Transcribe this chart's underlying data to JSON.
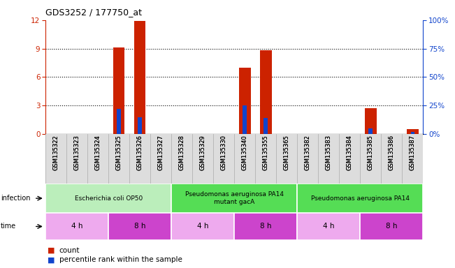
{
  "title": "GDS3252 / 177750_at",
  "samples": [
    "GSM135322",
    "GSM135323",
    "GSM135324",
    "GSM135325",
    "GSM135326",
    "GSM135327",
    "GSM135328",
    "GSM135329",
    "GSM135330",
    "GSM135340",
    "GSM135355",
    "GSM135365",
    "GSM135382",
    "GSM135383",
    "GSM135384",
    "GSM135385",
    "GSM135386",
    "GSM135387"
  ],
  "counts": [
    0,
    0,
    0,
    9.1,
    11.9,
    0,
    0,
    0,
    0,
    7.0,
    8.8,
    0,
    0,
    0,
    0,
    2.7,
    0,
    0.5
  ],
  "percentiles": [
    0,
    0,
    0,
    22,
    15,
    0,
    0,
    0,
    0,
    25,
    14,
    0,
    0,
    0,
    0,
    5,
    0,
    2
  ],
  "ylim_left": [
    0,
    12
  ],
  "ylim_right": [
    0,
    100
  ],
  "yticks_left": [
    0,
    3,
    6,
    9,
    12
  ],
  "yticks_right": [
    0,
    25,
    50,
    75,
    100
  ],
  "ytick_labels_right": [
    "0%",
    "25%",
    "50%",
    "75%",
    "100%"
  ],
  "bar_color_count": "#cc2200",
  "bar_color_pct": "#1144cc",
  "infection_groups": [
    {
      "label": "Escherichia coli OP50",
      "start": 0,
      "end": 6,
      "color": "#bbeebb"
    },
    {
      "label": "Pseudomonas aeruginosa PA14\nmutant gacA",
      "start": 6,
      "end": 12,
      "color": "#55dd55"
    },
    {
      "label": "Pseudomonas aeruginosa PA14",
      "start": 12,
      "end": 18,
      "color": "#55dd55"
    }
  ],
  "time_groups": [
    {
      "label": "4 h",
      "start": 0,
      "end": 3,
      "color": "#eeaaee"
    },
    {
      "label": "8 h",
      "start": 3,
      "end": 6,
      "color": "#cc44cc"
    },
    {
      "label": "4 h",
      "start": 6,
      "end": 9,
      "color": "#eeaaee"
    },
    {
      "label": "8 h",
      "start": 9,
      "end": 12,
      "color": "#cc44cc"
    },
    {
      "label": "4 h",
      "start": 12,
      "end": 15,
      "color": "#eeaaee"
    },
    {
      "label": "8 h",
      "start": 15,
      "end": 18,
      "color": "#cc44cc"
    }
  ],
  "legend_count_label": "count",
  "legend_pct_label": "percentile rank within the sample",
  "infection_label": "infection",
  "time_label": "time",
  "left_axis_color": "#cc2200",
  "right_axis_color": "#1144cc"
}
